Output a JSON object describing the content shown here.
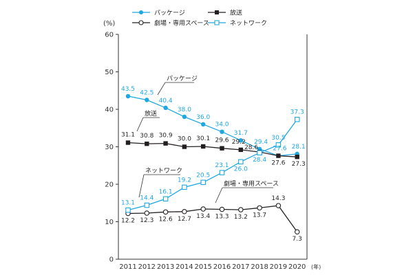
{
  "chart_data": {
    "type": "line",
    "title": "",
    "xlabel": "",
    "ylabel": "",
    "y_unit": "(%)",
    "x_unit": "(年)",
    "ylim": [
      0,
      60
    ],
    "yticks": [
      0,
      10,
      20,
      30,
      40,
      50,
      60
    ],
    "grid": false,
    "legend_placement": "top",
    "x": [
      2011,
      2012,
      2013,
      2014,
      2015,
      2016,
      2017,
      2018,
      2019,
      2020
    ],
    "x_labels": [
      "2011",
      "2012",
      "2013",
      "2014",
      "2015",
      "2016",
      "2017",
      "2018",
      "2019",
      "2020"
    ],
    "series": [
      {
        "name": "パッケージ",
        "color": "#1ea7e1",
        "marker": "filled-circle",
        "values": [
          43.5,
          42.5,
          40.4,
          38.0,
          36.0,
          34.0,
          31.7,
          29.4,
          27.6,
          28.1
        ],
        "labels": [
          "43.5",
          "42.5",
          "40.4",
          "38.0",
          "36.0",
          "34.0",
          "31.7",
          "29.4",
          "27.6",
          "28.1"
        ]
      },
      {
        "name": "放送",
        "color": "#231f20",
        "marker": "filled-square",
        "values": [
          31.1,
          30.8,
          30.9,
          30.0,
          30.1,
          29.6,
          29.2,
          28.6,
          27.6,
          27.3
        ],
        "labels": [
          "31.1",
          "30.8",
          "30.9",
          "30.0",
          "30.1",
          "29.6",
          "29.2",
          "28.6",
          "27.6",
          "27.3"
        ]
      },
      {
        "name": "劇場・専用スペース",
        "color": "#231f20",
        "marker": "open-circle",
        "values": [
          12.2,
          12.3,
          12.6,
          12.7,
          13.4,
          13.3,
          13.2,
          13.7,
          14.3,
          7.3
        ],
        "labels": [
          "12.2",
          "12.3",
          "12.6",
          "12.7",
          "13.4",
          "13.3",
          "13.2",
          "13.7",
          "14.3",
          "7.3"
        ]
      },
      {
        "name": "ネットワーク",
        "color": "#1ea7e1",
        "marker": "open-square",
        "values": [
          13.1,
          14.4,
          16.1,
          19.2,
          20.5,
          23.1,
          26.0,
          28.4,
          30.5,
          37.3
        ],
        "labels": [
          "13.1",
          "14.4",
          "16.1",
          "19.2",
          "20.5",
          "23.1",
          "26.0",
          "28.4",
          "30.5",
          "37.3"
        ]
      }
    ],
    "legend": [
      {
        "series": 0,
        "label": "パッケージ"
      },
      {
        "series": 1,
        "label": "放送"
      },
      {
        "series": 2,
        "label": "劇場・専用スペース"
      },
      {
        "series": 3,
        "label": "ネットワーク"
      }
    ],
    "annotations": [
      {
        "series": 0,
        "text": "パッケージ"
      },
      {
        "series": 1,
        "text": "放送"
      },
      {
        "series": 3,
        "text": "ネットワーク"
      },
      {
        "series": 2,
        "text": "劇場・専用スペース"
      }
    ]
  }
}
